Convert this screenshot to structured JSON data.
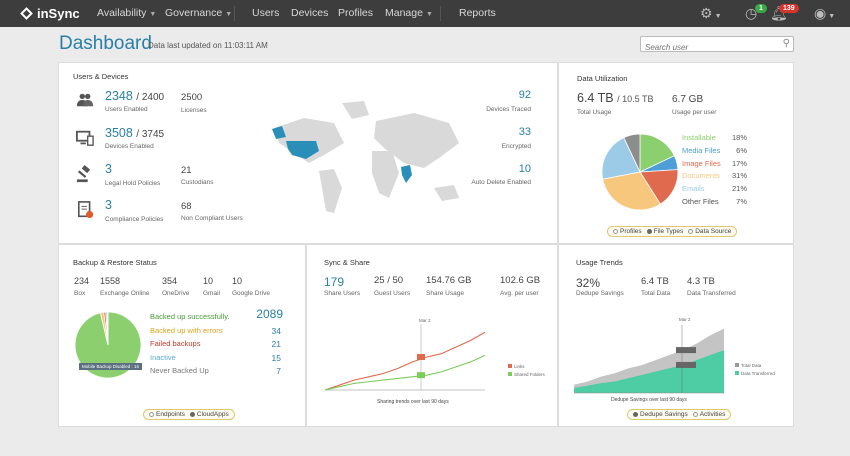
{
  "app": {
    "brand": "inSync",
    "nav": [
      "Availability",
      "Governance",
      "Users",
      "Devices",
      "Profiles",
      "Manage",
      "Reports"
    ],
    "notifications": {
      "clock_count": "1",
      "bell_count": "139"
    },
    "colors": {
      "topbar": "#3d3d3d",
      "accent": "#2a7fa8"
    }
  },
  "header": {
    "title": "Dashboard",
    "last_updated": "Data last updated on 11:03:11 AM",
    "search_placeholder": "Search user"
  },
  "users_devices": {
    "title": "Users & Devices",
    "users": {
      "value": "2348",
      "total": "2400",
      "label": "Users Enabled"
    },
    "licenses": {
      "value": "2500",
      "label": "Licenses"
    },
    "devices": {
      "value": "3508",
      "total": "3745",
      "label": "Devices Enabled"
    },
    "legal": {
      "value": "3",
      "label": "Legal Hold Policies"
    },
    "custodians": {
      "value": "21",
      "label": "Custodians"
    },
    "compliance": {
      "value": "3",
      "label": "Compliance Policies"
    },
    "noncompliant": {
      "value": "68",
      "label": "Non Compliant Users"
    },
    "traced": {
      "value": "92",
      "label": "Devices Traced"
    },
    "encrypted": {
      "value": "33",
      "label": "Encrypted"
    },
    "autodelete": {
      "value": "10",
      "label": "Auto Delete Enabled"
    },
    "icons": [
      "users-icon",
      "devices-icon",
      "gavel-icon",
      "compliance-icon",
      "world-map-icon"
    ]
  },
  "data_util": {
    "title": "Data Utilization",
    "total": {
      "value": "6.4 TB",
      "of": "10.5 TB",
      "label": "Total Usage"
    },
    "per_user": {
      "value": "6.7 GB",
      "label": "Usage per user"
    },
    "tabs": [
      "Profiles",
      "File Types",
      "Data Source"
    ]
  },
  "backup": {
    "title": "Backup & Restore Status",
    "stats": [
      {
        "value": "234",
        "label": "Box"
      },
      {
        "value": "1558",
        "label": "Exchange Online"
      },
      {
        "value": "354",
        "label": "OneDrive"
      },
      {
        "value": "10",
        "label": "Gmail"
      },
      {
        "value": "10",
        "label": "Google Drive"
      }
    ],
    "total": "2089",
    "rows": [
      {
        "label": "Backed up successfully.",
        "value": "",
        "color": "#4a9a3a"
      },
      {
        "label": "Backed up with errors",
        "value": "34",
        "color": "#d9a520"
      },
      {
        "label": "Failed backups",
        "value": "21",
        "color": "#c0392b"
      },
      {
        "label": "Inactive",
        "value": "15",
        "color": "#5aaad8"
      },
      {
        "label": "Never Backed Up",
        "value": "7",
        "color": "#777777"
      }
    ],
    "tooltip": "Mobile Backup Disabled : 16",
    "tabs": [
      "Endpoints",
      "CloudApps"
    ]
  },
  "sync": {
    "title": "Sync & Share",
    "stats": [
      {
        "value": "179",
        "label": "Share Users"
      },
      {
        "value": "25 / 50",
        "label": "Guest Users"
      },
      {
        "value": "154.76 GB",
        "label": "Share Usage"
      },
      {
        "value": "102.6 GB",
        "label": "Avg. per user"
      }
    ],
    "caption": "Sharing trends over last 90 days",
    "marker_date": "Mar 2",
    "legend": [
      "Links",
      "Shared Folders"
    ]
  },
  "usage": {
    "title": "Usage Trends",
    "stats": [
      {
        "value": "32%",
        "label": "Dedupe Savings"
      },
      {
        "value": "6.4 TB",
        "label": "Total Data"
      },
      {
        "value": "4.3 TB",
        "label": "Data Transferred"
      }
    ],
    "caption": "Dedupe Savings over last 90 days",
    "marker_date": "Mar 2",
    "legend": [
      "Total Data",
      "Data Transferred"
    ],
    "tabs": [
      "Dedupe Savings",
      "Activities"
    ]
  },
  "chart_data": [
    {
      "type": "pie",
      "title": "File Types",
      "categories": [
        "Installable",
        "Media Files",
        "Image Files",
        "Documents",
        "Emails",
        "Other Files"
      ],
      "values": [
        18,
        6,
        17,
        31,
        21,
        7
      ],
      "colors": [
        "#8ccf6f",
        "#4d9fd6",
        "#e06a4e",
        "#f8c77e",
        "#9ccbe8",
        "#8d8d8d"
      ]
    },
    {
      "type": "pie",
      "title": "Backup & Restore Status",
      "categories": [
        "Backed up successfully.",
        "Backed up with errors",
        "Failed backups",
        "Inactive",
        "Never Backed Up"
      ],
      "values": [
        2012,
        34,
        21,
        15,
        7
      ],
      "colors": [
        "#8ccf6f",
        "#f8c77e",
        "#e06a4e",
        "#9ccbe8",
        "#777777"
      ]
    },
    {
      "type": "line",
      "title": "Sharing trends over last 90 days",
      "series": [
        {
          "name": "Links",
          "values": [
            0,
            6,
            12,
            16,
            20,
            26,
            34,
            40,
            44,
            52,
            60,
            70
          ]
        },
        {
          "name": "Shared Folders",
          "values": [
            0,
            4,
            8,
            10,
            12,
            14,
            16,
            18,
            22,
            28,
            34,
            42
          ]
        }
      ]
    },
    {
      "type": "area",
      "title": "Dedupe Savings over last 90 days",
      "series": [
        {
          "name": "Total Data",
          "values": [
            10,
            14,
            20,
            24,
            30,
            34,
            40,
            46,
            52,
            60,
            70,
            78
          ]
        },
        {
          "name": "Data Transferred",
          "values": [
            6,
            9,
            12,
            14,
            18,
            22,
            26,
            30,
            34,
            40,
            46,
            52
          ]
        }
      ]
    }
  ]
}
